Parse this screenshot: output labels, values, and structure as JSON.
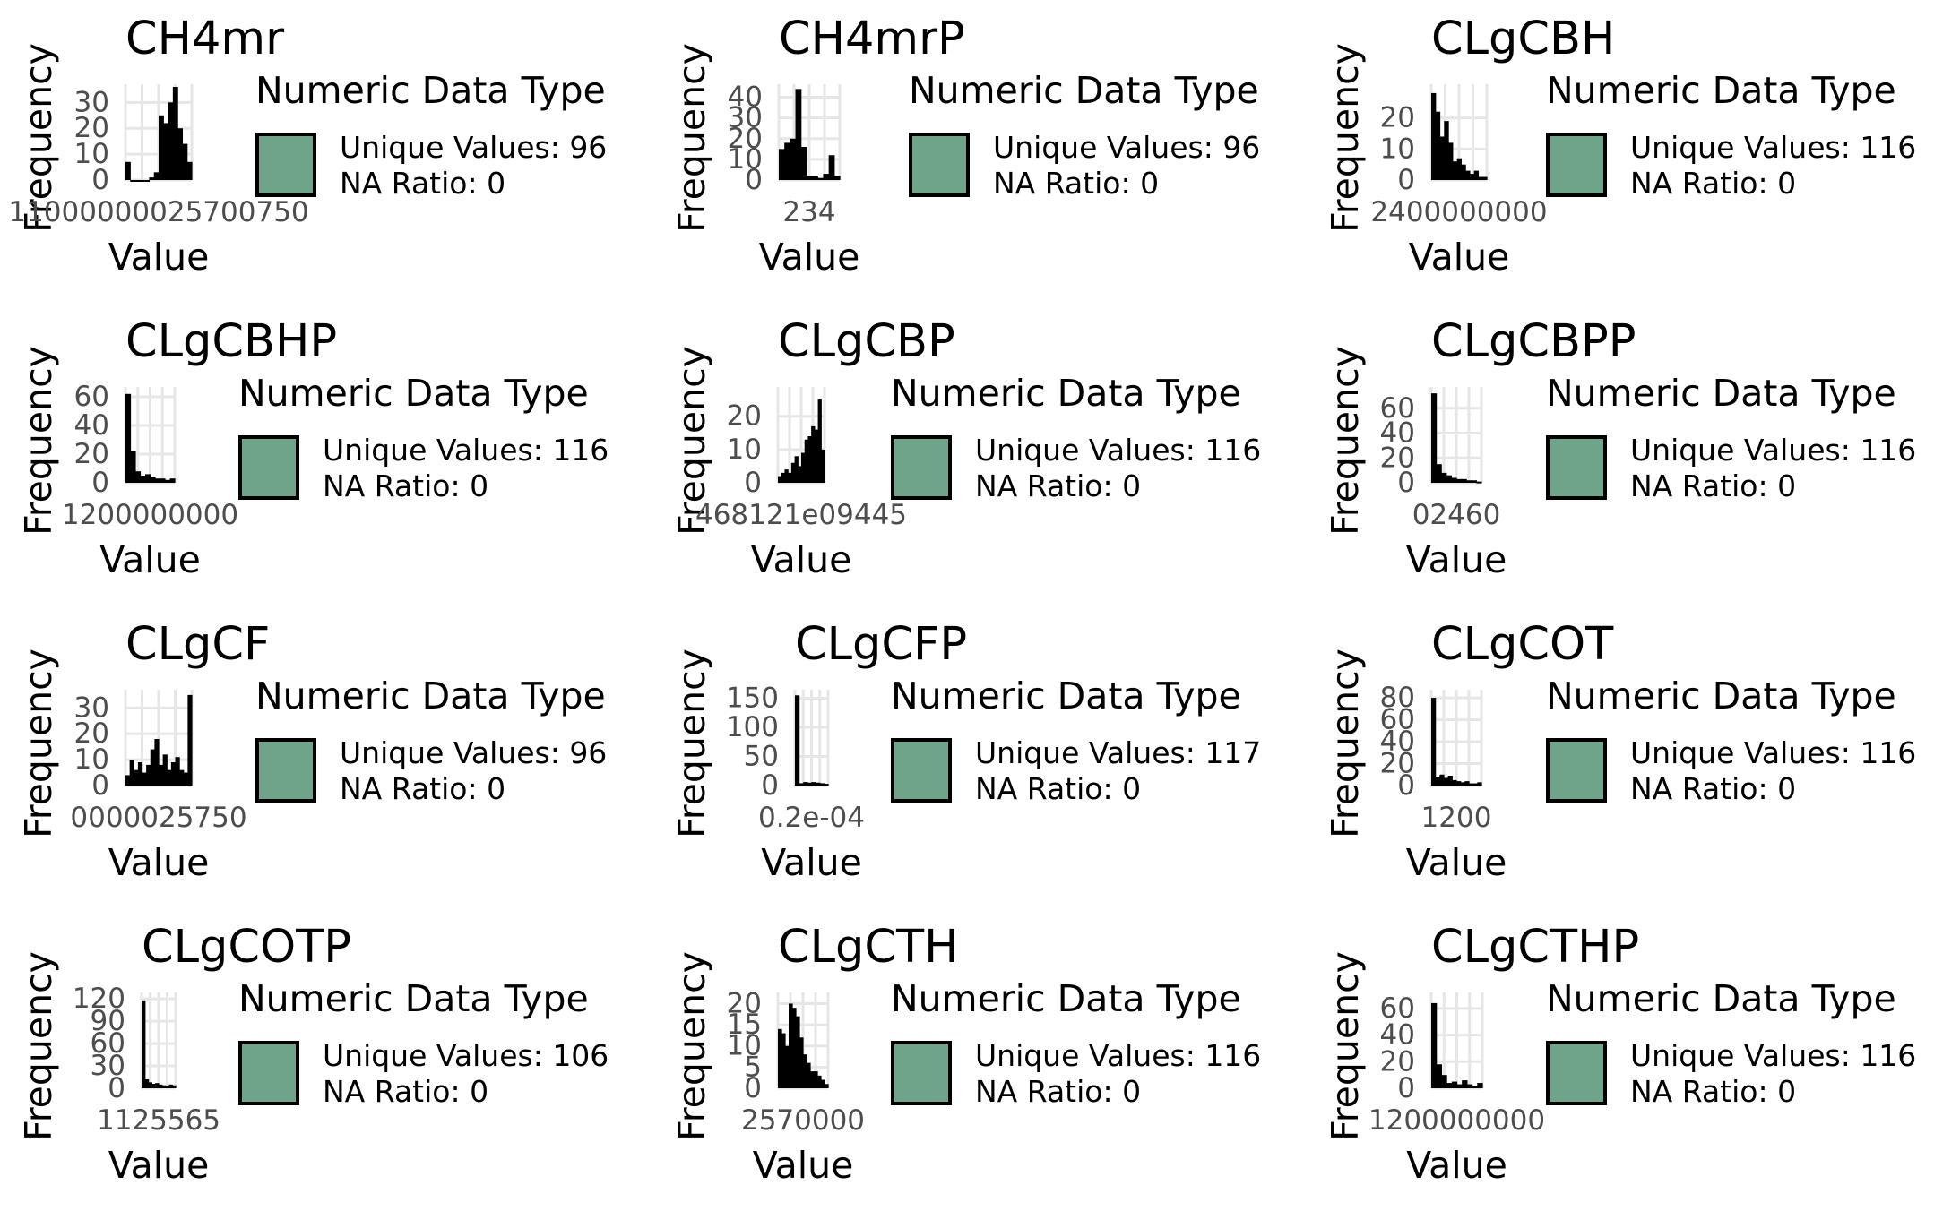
{
  "legend_title": "Numeric Data Type",
  "ylabel": "Frequency",
  "xlabel": "Value",
  "colors": {
    "fill": "#6fa38a",
    "bars": "#000000",
    "grid": "#e6e6e6",
    "tick": "#4d4d4d"
  },
  "unique_label": "Unique Values: ",
  "na_label": "NA Ratio: ",
  "chart_data": [
    {
      "type": "bar",
      "title": "CH4mr",
      "unique_values": 96,
      "na_ratio": 0,
      "ylim": [
        0,
        36
      ],
      "yticks": [
        "0",
        "10",
        "20",
        "30"
      ],
      "xticks": "1100000 1400000 1700000 2000000 2300000 2500 2750",
      "xtick_display": "11000000025700750",
      "values": [
        7,
        0,
        0,
        0,
        0,
        1,
        3,
        25,
        22,
        30,
        36,
        20,
        14,
        7
      ]
    },
    {
      "type": "bar",
      "title": "CH4mrP",
      "unique_values": 96,
      "na_ratio": 0,
      "ylim": [
        0,
        45
      ],
      "yticks": [
        "0",
        "10",
        "20",
        "30",
        "40"
      ],
      "xtick_display": "234",
      "values": [
        15,
        18,
        20,
        44,
        16,
        2,
        2,
        1,
        3,
        12,
        2
      ]
    },
    {
      "type": "bar",
      "title": "CLgCBH",
      "unique_values": 116,
      "na_ratio": 0,
      "ylim": [
        0,
        30
      ],
      "yticks": [
        "0",
        "10",
        "20"
      ],
      "xtick_display": "2400000000",
      "values": [
        28,
        22,
        14,
        19,
        12,
        6,
        7,
        5,
        3,
        2,
        3,
        1,
        1
      ]
    },
    {
      "type": "bar",
      "title": "CLgCBHP",
      "unique_values": 116,
      "na_ratio": 0,
      "ylim": [
        0,
        65
      ],
      "yticks": [
        "0",
        "20",
        "40",
        "60"
      ],
      "xtick_display": "1200000000",
      "values": [
        62,
        22,
        8,
        5,
        6,
        4,
        3,
        3,
        2,
        3
      ]
    },
    {
      "type": "bar",
      "title": "CLgCBP",
      "unique_values": 116,
      "na_ratio": 0,
      "ylim": [
        0,
        28
      ],
      "yticks": [
        "0",
        "10",
        "20"
      ],
      "xtick_display": "468121e09445",
      "values": [
        2,
        3,
        4,
        3,
        6,
        8,
        5,
        9,
        13,
        14,
        17,
        16,
        25,
        10
      ]
    },
    {
      "type": "bar",
      "title": "CLgCBPP",
      "unique_values": 116,
      "na_ratio": 0,
      "ylim": [
        0,
        75
      ],
      "yticks": [
        "0",
        "20",
        "40",
        "60"
      ],
      "xtick_display": "02460",
      "values": [
        72,
        15,
        8,
        6,
        4,
        3,
        3,
        2,
        2,
        1
      ]
    },
    {
      "type": "bar",
      "title": "CLgCF",
      "unique_values": 96,
      "na_ratio": 0,
      "ylim": [
        0,
        36
      ],
      "yticks": [
        "0",
        "10",
        "20",
        "30"
      ],
      "xtick_display": "0000025750",
      "values": [
        4,
        10,
        6,
        9,
        5,
        8,
        14,
        18,
        8,
        12,
        6,
        9,
        11,
        6,
        5,
        35
      ]
    },
    {
      "type": "bar",
      "title": "CLgCFP",
      "unique_values": 117,
      "na_ratio": 0,
      "ylim": [
        0,
        160
      ],
      "yticks": [
        "0",
        "50",
        "100",
        "150"
      ],
      "xtick_display": "0.2e-04",
      "values": [
        155,
        4,
        6,
        5,
        6,
        5,
        4,
        3
      ]
    },
    {
      "type": "bar",
      "title": "CLgCOT",
      "unique_values": 116,
      "na_ratio": 0,
      "ylim": [
        0,
        85
      ],
      "yticks": [
        "0",
        "20",
        "40",
        "60",
        "80"
      ],
      "xtick_display": "1200",
      "values": [
        80,
        8,
        10,
        7,
        9,
        5,
        4,
        3,
        4,
        2,
        2,
        3
      ]
    },
    {
      "type": "bar",
      "title": "CLgCOTP",
      "unique_values": 106,
      "na_ratio": 0,
      "ylim": [
        0,
        125
      ],
      "yticks": [
        "0",
        "30",
        "60",
        "90",
        "120"
      ],
      "xtick_display": "1125565",
      "values": [
        118,
        12,
        8,
        6,
        7,
        5,
        4,
        3,
        5,
        4
      ]
    },
    {
      "type": "bar",
      "title": "CLgCTH",
      "unique_values": 116,
      "na_ratio": 0,
      "ylim": [
        0,
        22
      ],
      "yticks": [
        "0",
        "5",
        "10",
        "15",
        "20"
      ],
      "xtick_display": "2570000",
      "values": [
        14,
        13,
        10,
        20,
        19,
        17,
        12,
        8,
        6,
        4,
        4,
        3,
        2,
        1
      ]
    },
    {
      "type": "bar",
      "title": "CLgCTHP",
      "unique_values": 116,
      "na_ratio": 0,
      "ylim": [
        0,
        70
      ],
      "yticks": [
        "0",
        "20",
        "40",
        "60"
      ],
      "xtick_display": "1200000000",
      "values": [
        64,
        18,
        10,
        4,
        5,
        3,
        6,
        3,
        2,
        4
      ]
    }
  ]
}
